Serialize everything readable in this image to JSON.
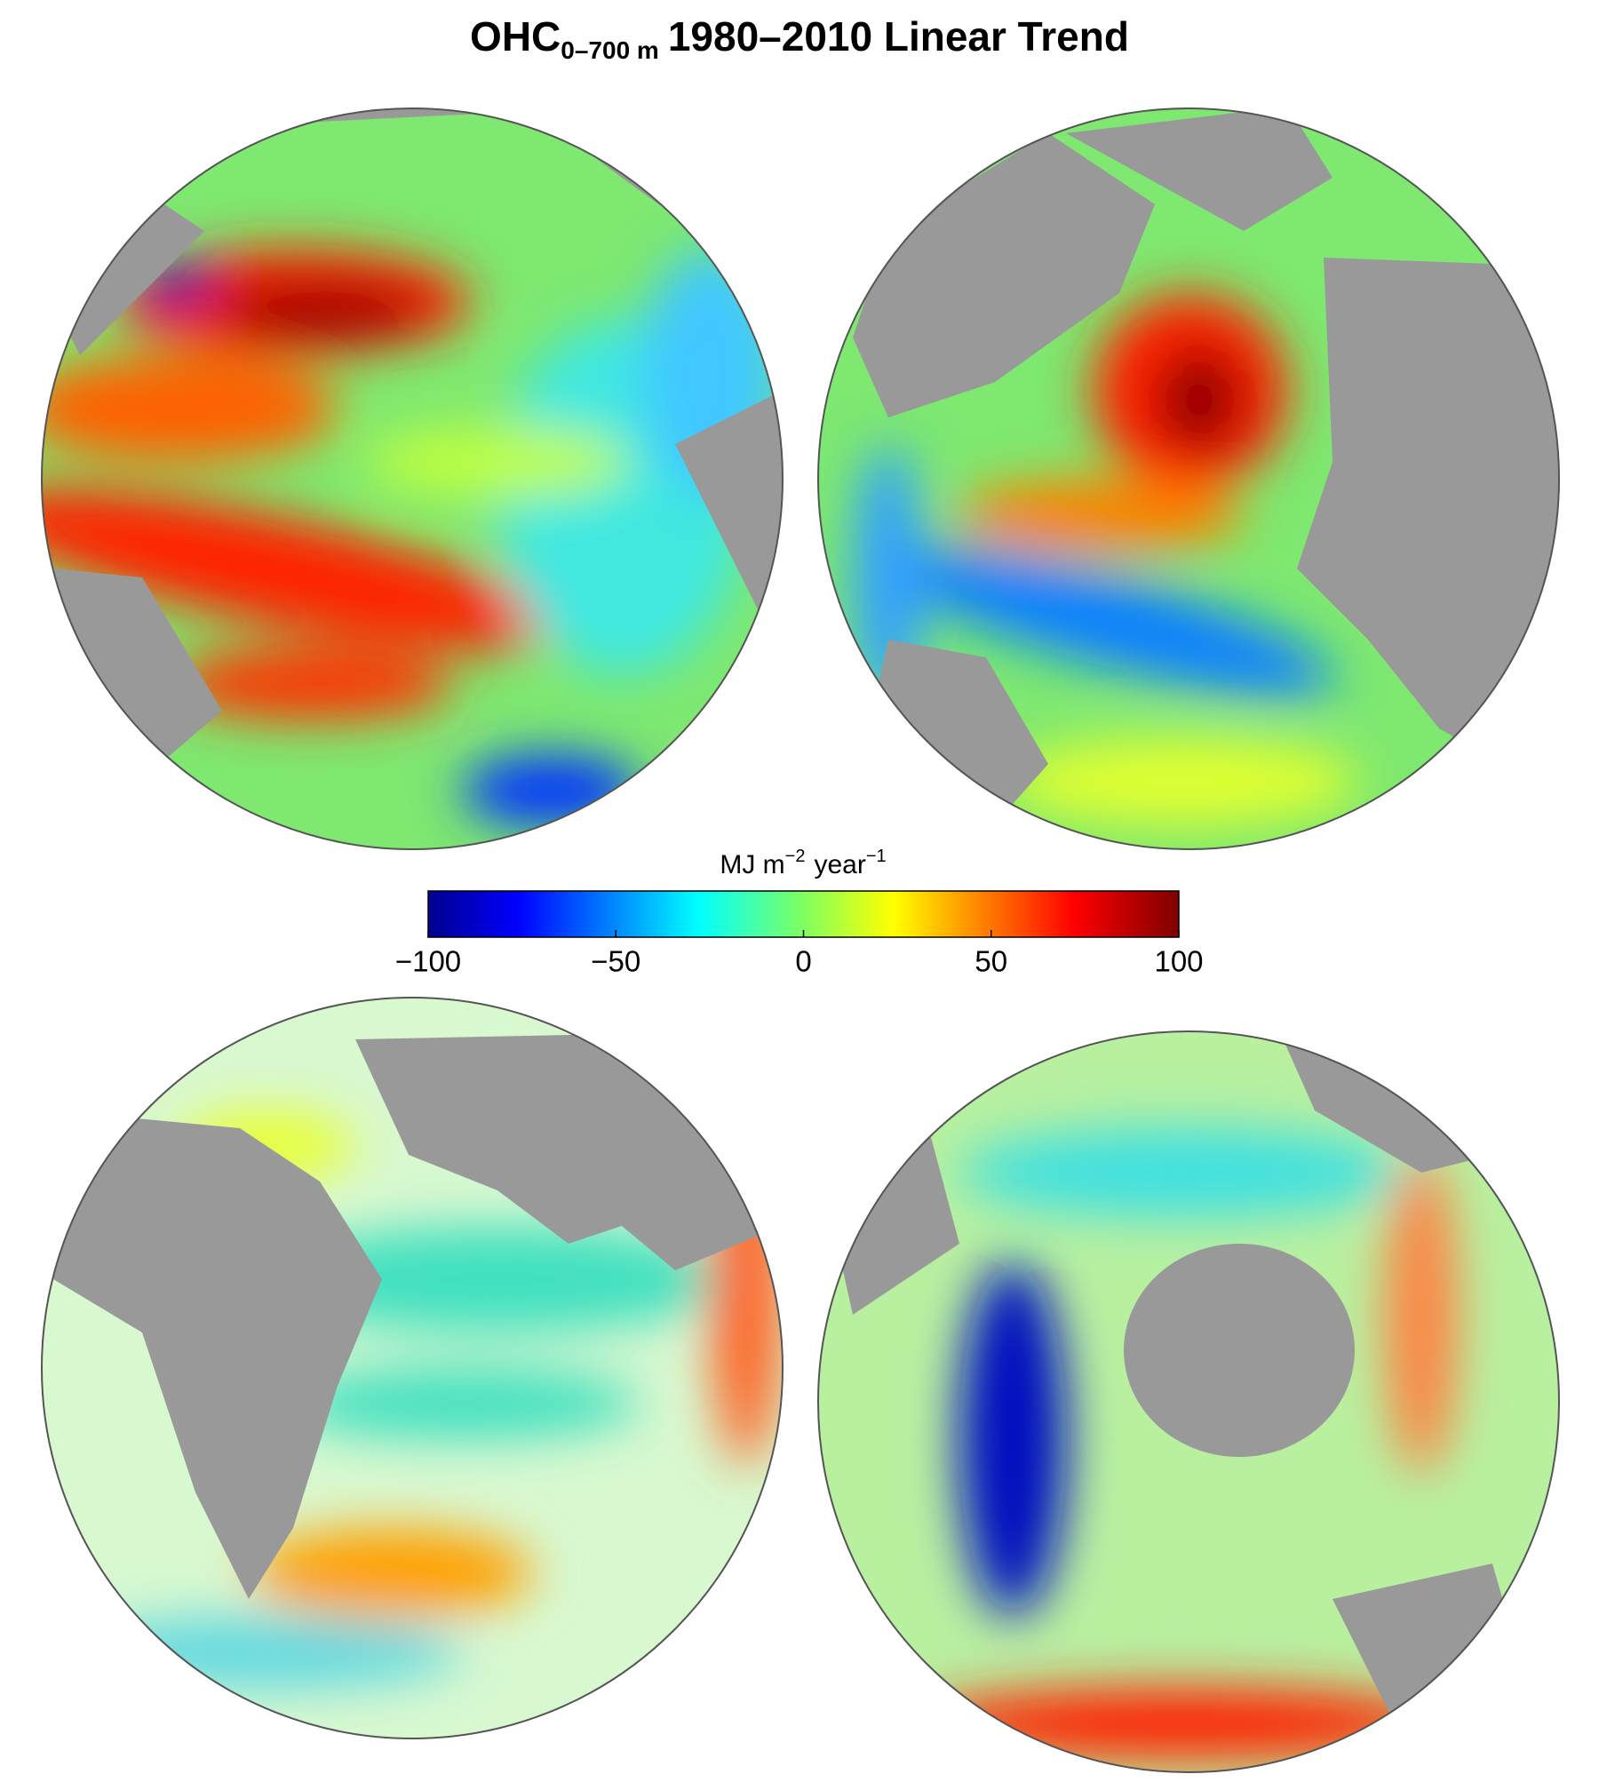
{
  "title": {
    "main": "OHC",
    "subscript": "0–700 m",
    "rest": "1980–2010 Linear Trend"
  },
  "colorbar": {
    "units": [
      {
        "text": "MJ m",
        "sup": "−2"
      },
      {
        "text": "year",
        "sup": "−1"
      }
    ],
    "lim": [
      -100,
      100
    ],
    "ticks": [
      {
        "value": -100,
        "label": "−100"
      },
      {
        "value": -50,
        "label": "−50"
      },
      0,
      50,
      100
    ]
  }
}
